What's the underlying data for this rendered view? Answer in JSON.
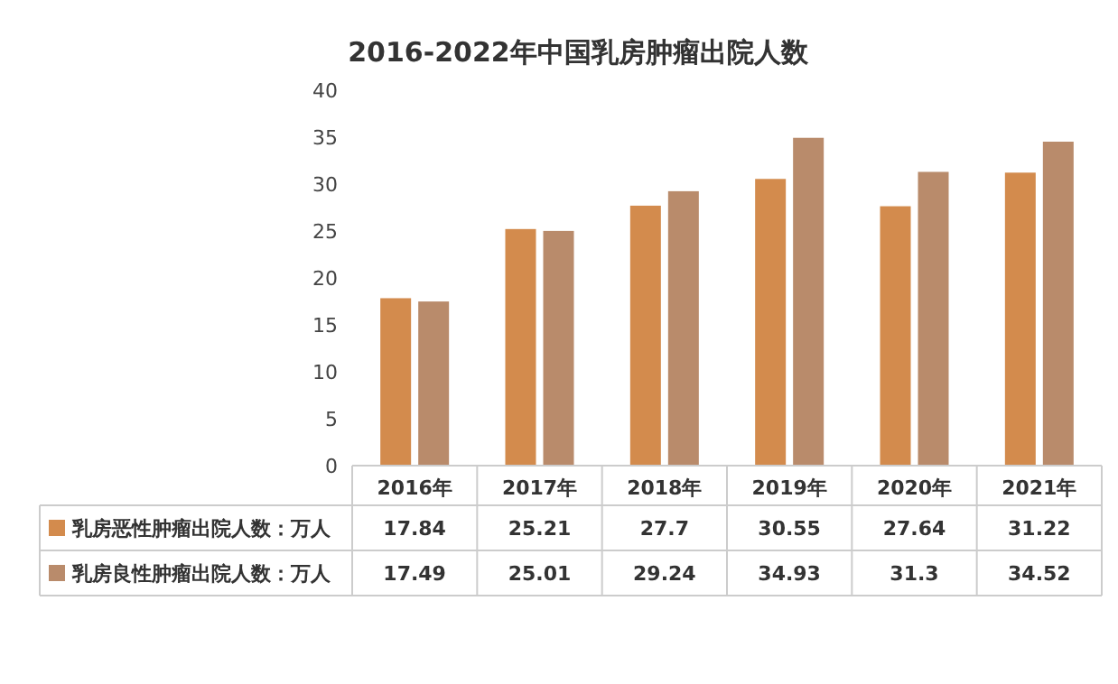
{
  "chart_data": {
    "type": "bar",
    "title": "2016-2022年中国乳房肿瘤出院人数",
    "categories": [
      "2016年",
      "2017年",
      "2018年",
      "2019年",
      "2020年",
      "2021年"
    ],
    "series": [
      {
        "name": "乳房恶性肿瘤出院人数：万人",
        "color": "#d38b4d",
        "values": [
          17.84,
          25.21,
          27.7,
          30.55,
          27.64,
          31.22
        ]
      },
      {
        "name": "乳房良性肿瘤出院人数：万人",
        "color": "#b98b6b",
        "values": [
          17.49,
          25.01,
          29.24,
          34.93,
          31.3,
          34.52
        ]
      }
    ],
    "ylim": [
      0,
      40
    ],
    "yticks": [
      0,
      5,
      10,
      15,
      20,
      25,
      30,
      35,
      40
    ],
    "data_labels": true,
    "legend": "bottom left",
    "grid": false
  }
}
